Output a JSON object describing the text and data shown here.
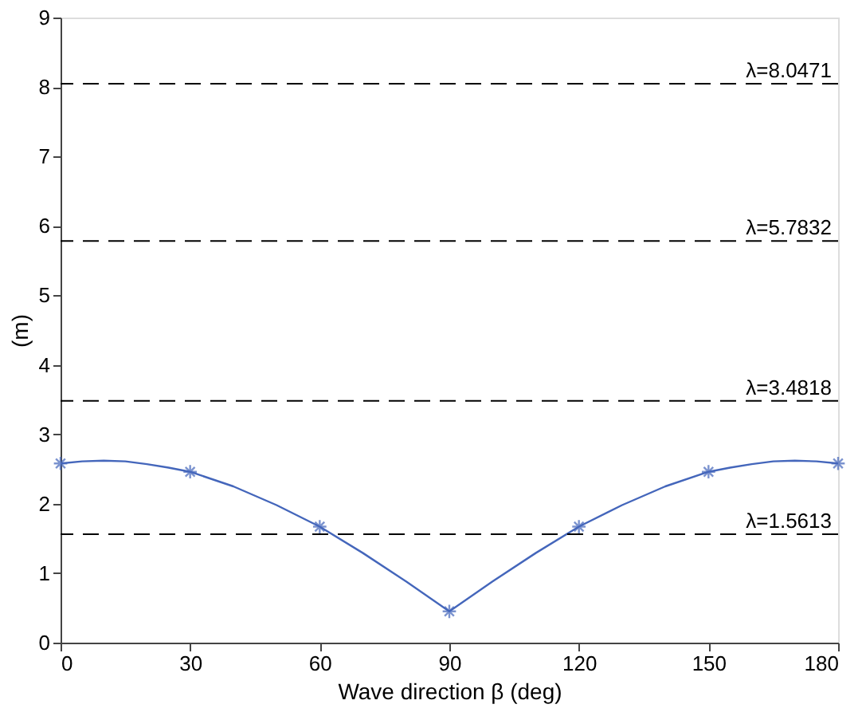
{
  "chart_data": {
    "type": "line",
    "xlabel": "Wave direction β (deg)",
    "ylabel": "(m)",
    "xlim": [
      0,
      180
    ],
    "xticks": [
      0,
      30,
      60,
      90,
      120,
      150,
      180
    ],
    "ylim": [
      0,
      9
    ],
    "yticks": [
      0,
      1,
      2,
      3,
      4,
      5,
      6,
      7,
      8,
      9
    ],
    "grid": false,
    "series": [
      {
        "color": "#4466bb",
        "marker": "none",
        "line_style": "solid",
        "x": [
          0,
          5,
          10,
          15,
          20,
          25,
          30,
          40,
          50,
          60,
          70,
          80,
          90,
          100,
          110,
          120,
          130,
          140,
          150,
          155,
          160,
          165,
          170,
          175,
          180
        ],
        "values": [
          2.58,
          2.61,
          2.62,
          2.61,
          2.57,
          2.52,
          2.46,
          2.25,
          1.98,
          1.67,
          1.29,
          0.88,
          0.45,
          0.88,
          1.29,
          1.67,
          1.98,
          2.25,
          2.46,
          2.52,
          2.57,
          2.61,
          2.62,
          2.61,
          2.58
        ]
      },
      {
        "type": "scatter",
        "color": "#4466bb",
        "marker": "cross",
        "x": [
          0,
          30,
          60,
          90,
          120,
          150,
          180
        ],
        "values": [
          2.58,
          2.46,
          1.67,
          0.45,
          1.67,
          2.46,
          2.58
        ]
      }
    ],
    "ref_lines": [
      {
        "axis": "y",
        "value": 1.5613,
        "label": "λ=1.5613",
        "color": "#000000",
        "line_style": "dashed"
      },
      {
        "axis": "y",
        "value": 3.4818,
        "label": "λ=3.4818",
        "color": "#000000",
        "line_style": "dashed"
      },
      {
        "axis": "y",
        "value": 5.7832,
        "label": "λ=5.7832",
        "color": "#000000",
        "line_style": "dashed"
      },
      {
        "axis": "y",
        "value": 8.0471,
        "label": "λ=8.0471",
        "color": "#000000",
        "line_style": "dashed"
      }
    ]
  }
}
